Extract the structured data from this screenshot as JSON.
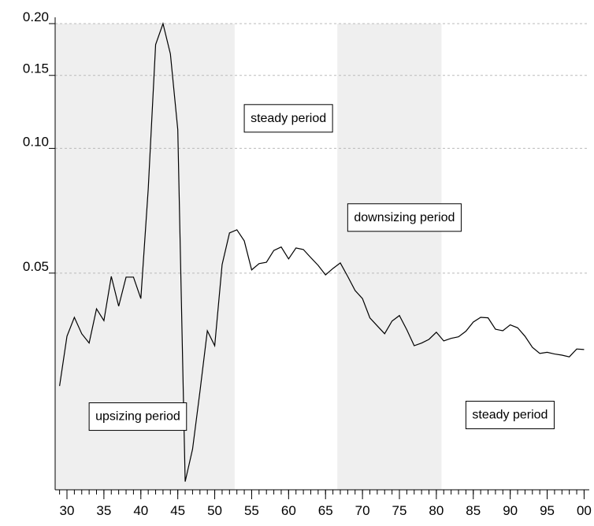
{
  "chart_data": {
    "type": "line",
    "log_y": true,
    "grid": true,
    "x": [
      1929,
      1930,
      1931,
      1932,
      1933,
      1934,
      1935,
      1936,
      1937,
      1938,
      1939,
      1940,
      1941,
      1942,
      1943,
      1944,
      1945,
      1946,
      1947,
      1948,
      1949,
      1950,
      1951,
      1952,
      1953,
      1954,
      1955,
      1956,
      1957,
      1958,
      1959,
      1960,
      1961,
      1962,
      1963,
      1964,
      1965,
      1966,
      1967,
      1968,
      1969,
      1970,
      1971,
      1972,
      1973,
      1974,
      1975,
      1976,
      1977,
      1978,
      1979,
      1980,
      1981,
      1982,
      1983,
      1984,
      1985,
      1986,
      1987,
      1988,
      1989,
      1990,
      1991,
      1992,
      1993,
      1994,
      1995,
      1996,
      1997,
      1998,
      1999,
      2000
    ],
    "series": [
      {
        "color": "#000000",
        "values": [
          0.0267,
          0.0352,
          0.0391,
          0.0357,
          0.0339,
          0.041,
          0.0384,
          0.0491,
          0.0416,
          0.0489,
          0.0489,
          0.0434,
          0.0798,
          0.178,
          0.2,
          0.169,
          0.111,
          0.0157,
          0.0188,
          0.0259,
          0.0363,
          0.0334,
          0.0524,
          0.0625,
          0.0636,
          0.0598,
          0.0509,
          0.0527,
          0.0531,
          0.0567,
          0.0578,
          0.0541,
          0.0575,
          0.057,
          0.0545,
          0.0522,
          0.0495,
          0.0513,
          0.0529,
          0.0491,
          0.0454,
          0.0434,
          0.039,
          0.0373,
          0.0357,
          0.0383,
          0.0395,
          0.0365,
          0.0334,
          0.0339,
          0.0346,
          0.036,
          0.0343,
          0.0348,
          0.0351,
          0.0362,
          0.0381,
          0.0391,
          0.039,
          0.0366,
          0.0363,
          0.0375,
          0.0369,
          0.0352,
          0.0331,
          0.032,
          0.0322,
          0.0319,
          0.0317,
          0.0314,
          0.0328,
          0.0327
        ]
      }
    ],
    "xlim": [
      1928.4,
      2000.7
    ],
    "xticks": [
      {
        "value": 1930,
        "label": "30"
      },
      {
        "value": 1935,
        "label": "35"
      },
      {
        "value": 1940,
        "label": "40"
      },
      {
        "value": 1945,
        "label": "45"
      },
      {
        "value": 1950,
        "label": "50"
      },
      {
        "value": 1955,
        "label": "55"
      },
      {
        "value": 1960,
        "label": "60"
      },
      {
        "value": 1965,
        "label": "65"
      },
      {
        "value": 1970,
        "label": "70"
      },
      {
        "value": 1975,
        "label": "75"
      },
      {
        "value": 1980,
        "label": "80"
      },
      {
        "value": 1985,
        "label": "85"
      },
      {
        "value": 1990,
        "label": "90"
      },
      {
        "value": 1995,
        "label": "95"
      },
      {
        "value": 2000,
        "label": "00"
      }
    ],
    "ylim": [
      0.015,
      0.2
    ],
    "yticks": [
      {
        "value": 0.05,
        "label": "0.05"
      },
      {
        "value": 0.1,
        "label": "0.10"
      },
      {
        "value": 0.15,
        "label": "0.15"
      },
      {
        "value": 0.2,
        "label": "0.20"
      }
    ],
    "shaded_spans": [
      [
        1928.4,
        1952.7
      ],
      [
        1966.6,
        1980.7
      ]
    ],
    "shade_color": "#efefef",
    "annotations": [
      {
        "text": "steady period",
        "x": 1954,
        "y": 0.118
      },
      {
        "text": "downsizing period",
        "x": 1968,
        "y": 0.068
      },
      {
        "text": "upsizing period",
        "x": 1933,
        "y": 0.0225
      },
      {
        "text": "steady period",
        "x": 1984,
        "y": 0.0227
      }
    ]
  }
}
